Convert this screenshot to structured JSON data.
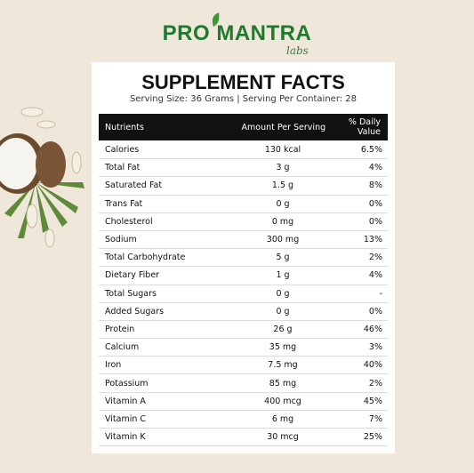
{
  "logo": {
    "main": "PRO MANTRA",
    "sub": "labs"
  },
  "title": "SUPPLEMENT FACTS",
  "serving": "Serving Size: 36 Grams | Serving Per Container: 28",
  "table": {
    "header": [
      "Nutrients",
      "Amount Per Serving",
      "% Daily Value"
    ],
    "rows": [
      [
        "Calories",
        "130 kcal",
        "6.5%"
      ],
      [
        "Total Fat",
        "3 g",
        "4%"
      ],
      [
        "Saturated Fat",
        "1.5 g",
        "8%"
      ],
      [
        "Trans Fat",
        "0 g",
        "0%"
      ],
      [
        "Cholesterol",
        "0 mg",
        "0%"
      ],
      [
        "Sodium",
        "300 mg",
        "13%"
      ],
      [
        "Total Carbohydrate",
        "5 g",
        "2%"
      ],
      [
        "Dietary Fiber",
        "1 g",
        "4%"
      ],
      [
        "Total Sugars",
        "0 g",
        "-"
      ],
      [
        "Added Sugars",
        "0 g",
        "0%"
      ],
      [
        "Protein",
        "26 g",
        "46%"
      ],
      [
        "Calcium",
        "35 mg",
        "3%"
      ],
      [
        "Iron",
        "7.5 mg",
        "40%"
      ],
      [
        "Potassium",
        "85 mg",
        "2%"
      ],
      [
        "Vitamin A",
        "400 mcg",
        "45%"
      ],
      [
        "Vitamin C",
        "6 mg",
        "7%"
      ],
      [
        "Vitamin K",
        "30 mcg",
        "25%"
      ]
    ]
  }
}
